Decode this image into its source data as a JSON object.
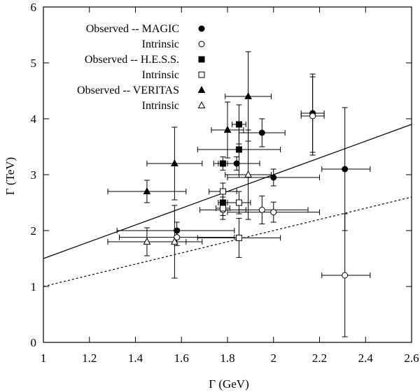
{
  "chart_data": {
    "type": "scatter",
    "title": "",
    "xlabel": "Γ (GeV)",
    "ylabel": "Γ (TeV)",
    "xlim": [
      1,
      2.6
    ],
    "ylim": [
      0,
      6
    ],
    "x_ticks": [
      1,
      1.2,
      1.4,
      1.6,
      1.8,
      2,
      2.2,
      2.4,
      2.6
    ],
    "x_tick_labels": [
      "1",
      "1.2",
      "1.4",
      "1.6",
      "1.8",
      "2",
      "2.2",
      "2.4",
      "2.6"
    ],
    "y_ticks": [
      0,
      1,
      2,
      3,
      4,
      5,
      6
    ],
    "y_tick_labels": [
      "0",
      "1",
      "2",
      "3",
      "4",
      "5",
      "6"
    ],
    "legend_position": "top-left",
    "series": [
      {
        "name": "Observed -- MAGIC",
        "label": "Observed -- MAGIC",
        "marker": "filled-circle",
        "points": [
          {
            "x": 1.58,
            "y": 2.0,
            "xerr": [
              0.26,
              0.25
            ],
            "yerr": [
              0.15,
              0.15
            ]
          },
          {
            "x": 1.84,
            "y": 3.2,
            "xerr": [
              0.1,
              0.1
            ],
            "yerr": [
              0.12,
              0.12
            ]
          },
          {
            "x": 1.95,
            "y": 3.75,
            "xerr": [
              0.1,
              0.1
            ],
            "yerr": [
              0.25,
              0.25
            ]
          },
          {
            "x": 2.0,
            "y": 2.95,
            "xerr": [
              0.2,
              0.2
            ],
            "yerr": [
              0.15,
              0.15
            ]
          },
          {
            "x": 2.17,
            "y": 4.1,
            "xerr": [
              0.05,
              0.05
            ],
            "yerr": [
              0.7,
              0.7
            ]
          },
          {
            "x": 2.31,
            "y": 3.1,
            "xerr": [
              0.1,
              0.11
            ],
            "yerr": [
              1.1,
              1.1
            ]
          }
        ]
      },
      {
        "name": "Intrinsic (MAGIC)",
        "label": "Intrinsic",
        "marker": "open-circle",
        "points": [
          {
            "x": 1.58,
            "y": 1.88,
            "xerr": [
              0.25,
              0.25
            ],
            "yerr": [
              0.15,
              0.15
            ]
          },
          {
            "x": 1.78,
            "y": 2.37,
            "xerr": [
              0.1,
              0.1
            ],
            "yerr": [
              0.1,
              0.1
            ]
          },
          {
            "x": 1.95,
            "y": 2.37,
            "xerr": [
              0.1,
              0.2
            ],
            "yerr": [
              0.25,
              0.25
            ]
          },
          {
            "x": 2.0,
            "y": 2.33,
            "xerr": [
              0.2,
              0.2
            ],
            "yerr": [
              0.18,
              0.18
            ]
          },
          {
            "x": 2.17,
            "y": 4.05,
            "xerr": [
              0.05,
              0.05
            ],
            "yerr": [
              0.7,
              0.7
            ]
          },
          {
            "x": 2.31,
            "y": 1.2,
            "xerr": [
              0.1,
              0.11
            ],
            "yerr": [
              1.1,
              1.1
            ]
          }
        ]
      },
      {
        "name": "Observed -- H.E.S.S.",
        "label": "Observed -- H.E.S.S.",
        "marker": "filled-square",
        "points": [
          {
            "x": 1.78,
            "y": 3.2,
            "xerr": [
              0.02,
              0.02
            ],
            "yerr": [
              0.12,
              0.12
            ]
          },
          {
            "x": 1.78,
            "y": 2.5,
            "xerr": [
              0.02,
              0.02
            ],
            "yerr": [
              0.1,
              0.1
            ]
          },
          {
            "x": 1.85,
            "y": 3.9,
            "xerr": [
              0.03,
              0.03
            ],
            "yerr": [
              0.35,
              0.35
            ]
          },
          {
            "x": 1.85,
            "y": 3.45,
            "xerr": [
              0.18,
              0.18
            ],
            "yerr": [
              0.5,
              0.5
            ]
          }
        ]
      },
      {
        "name": "Intrinsic (H.E.S.S.)",
        "label": "Intrinsic",
        "marker": "open-square",
        "points": [
          {
            "x": 1.78,
            "y": 2.7,
            "xerr": [
              0.06,
              0.06
            ],
            "yerr": [
              0.15,
              0.15
            ]
          },
          {
            "x": 1.78,
            "y": 2.4,
            "xerr": [
              0.03,
              0.03
            ],
            "yerr": [
              0.2,
              0.2
            ]
          },
          {
            "x": 1.85,
            "y": 2.5,
            "xerr": [
              0.05,
              0.05
            ],
            "yerr": [
              0.2,
              0.2
            ]
          },
          {
            "x": 1.85,
            "y": 1.87,
            "xerr": [
              0.18,
              0.18
            ],
            "yerr": [
              0.35,
              0.35
            ]
          }
        ]
      },
      {
        "name": "Observed -- VERITAS",
        "label": "Observed -- VERITAS",
        "marker": "filled-triangle",
        "points": [
          {
            "x": 1.45,
            "y": 2.7,
            "xerr": [
              0.17,
              0.17
            ],
            "yerr": [
              0.2,
              0.2
            ]
          },
          {
            "x": 1.57,
            "y": 3.2,
            "xerr": [
              0.12,
              0.12
            ],
            "yerr": [
              0.65,
              0.65
            ]
          },
          {
            "x": 1.8,
            "y": 3.8,
            "xerr": [
              0.07,
              0.07
            ],
            "yerr": [
              0.5,
              0.5
            ]
          },
          {
            "x": 1.89,
            "y": 4.4,
            "xerr": [
              0.1,
              0.1
            ],
            "yerr": [
              0.8,
              0.8
            ]
          }
        ]
      },
      {
        "name": "Intrinsic (VERITAS)",
        "label": "Intrinsic",
        "marker": "open-triangle",
        "points": [
          {
            "x": 1.45,
            "y": 1.8,
            "xerr": [
              0.17,
              0.17
            ],
            "yerr": [
              0.25,
              0.25
            ]
          },
          {
            "x": 1.57,
            "y": 1.8,
            "xerr": [
              0.12,
              0.12
            ],
            "yerr": [
              0.65,
              0.65
            ]
          },
          {
            "x": 1.89,
            "y": 3.0,
            "xerr": [
              0.1,
              0.1
            ],
            "yerr": [
              0.8,
              0.8
            ]
          }
        ]
      }
    ],
    "lines": [
      {
        "name": "solid-reference-line",
        "style": "solid",
        "x": [
          1,
          2.6
        ],
        "y": [
          1.5,
          3.9
        ]
      },
      {
        "name": "dashed-reference-line",
        "style": "dashed",
        "x": [
          1,
          2.6
        ],
        "y": [
          1.0,
          2.6
        ]
      }
    ]
  }
}
